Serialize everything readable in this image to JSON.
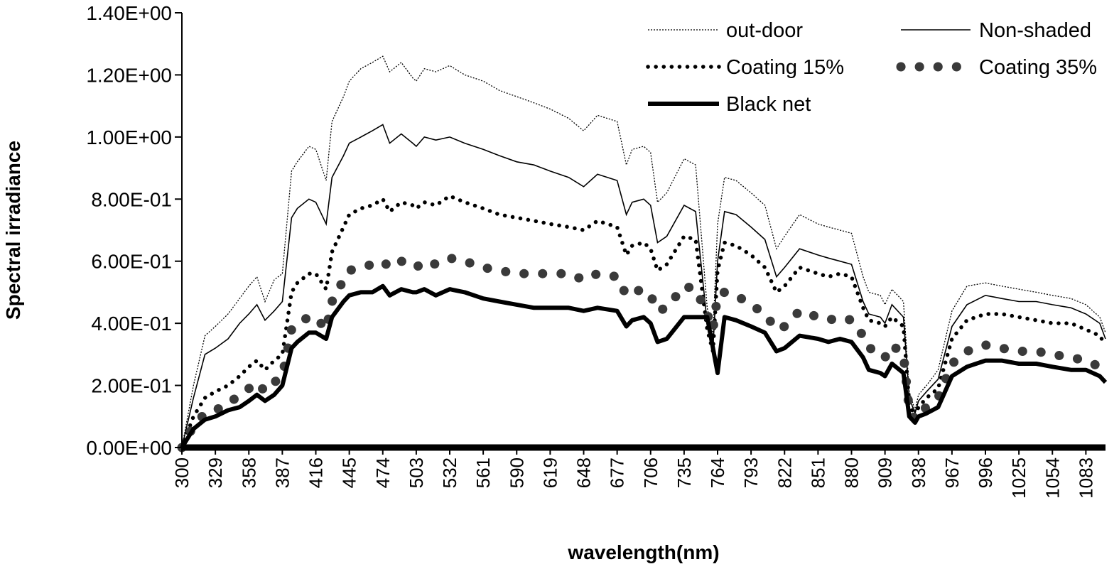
{
  "chart_data": {
    "type": "line",
    "xlabel": "wavelength(nm)",
    "ylabel": "Spectral irradiance",
    "ylim": [
      0,
      1.4
    ],
    "yticks": [
      "0.00E+00",
      "2.00E-01",
      "4.00E-01",
      "6.00E-01",
      "8.00E-01",
      "1.00E+00",
      "1.20E+00",
      "1.40E+00"
    ],
    "xticks": [
      "300",
      "329",
      "358",
      "387",
      "416",
      "445",
      "474",
      "503",
      "532",
      "561",
      "590",
      "619",
      "648",
      "677",
      "706",
      "735",
      "764",
      "793",
      "822",
      "851",
      "880",
      "909",
      "938",
      "967",
      "996",
      "1025",
      "1054",
      "1083"
    ],
    "xlim": [
      300,
      1100
    ],
    "grid": false,
    "legend_position": "top-right",
    "x": [
      300,
      310,
      320,
      329,
      340,
      350,
      358,
      365,
      372,
      380,
      387,
      395,
      400,
      410,
      416,
      425,
      430,
      440,
      445,
      455,
      465,
      474,
      480,
      490,
      500,
      503,
      510,
      520,
      532,
      545,
      561,
      575,
      590,
      605,
      619,
      635,
      648,
      660,
      677,
      685,
      690,
      700,
      706,
      712,
      720,
      735,
      745,
      755,
      760,
      764,
      770,
      780,
      793,
      805,
      815,
      822,
      835,
      851,
      860,
      870,
      880,
      890,
      895,
      905,
      909,
      915,
      925,
      930,
      935,
      938,
      945,
      955,
      967,
      980,
      996,
      1010,
      1025,
      1040,
      1054,
      1070,
      1083,
      1095,
      1100
    ],
    "series": [
      {
        "name": "out-door",
        "style": "thin-dotted",
        "values": [
          0.0,
          0.2,
          0.36,
          0.39,
          0.43,
          0.48,
          0.52,
          0.55,
          0.47,
          0.54,
          0.56,
          0.89,
          0.92,
          0.97,
          0.96,
          0.86,
          1.05,
          1.13,
          1.18,
          1.22,
          1.24,
          1.26,
          1.21,
          1.24,
          1.19,
          1.18,
          1.22,
          1.21,
          1.23,
          1.2,
          1.18,
          1.15,
          1.13,
          1.11,
          1.09,
          1.06,
          1.02,
          1.07,
          1.05,
          0.91,
          0.96,
          0.97,
          0.95,
          0.79,
          0.82,
          0.93,
          0.91,
          0.45,
          0.36,
          0.72,
          0.87,
          0.86,
          0.82,
          0.78,
          0.64,
          0.68,
          0.75,
          0.72,
          0.71,
          0.7,
          0.69,
          0.55,
          0.5,
          0.49,
          0.46,
          0.51,
          0.47,
          0.18,
          0.12,
          0.17,
          0.2,
          0.25,
          0.44,
          0.52,
          0.53,
          0.52,
          0.51,
          0.5,
          0.49,
          0.48,
          0.46,
          0.42,
          0.37
        ]
      },
      {
        "name": "Non-shaded",
        "style": "thin-solid",
        "values": [
          0.0,
          0.16,
          0.3,
          0.32,
          0.35,
          0.4,
          0.43,
          0.46,
          0.41,
          0.44,
          0.47,
          0.74,
          0.77,
          0.8,
          0.79,
          0.72,
          0.87,
          0.94,
          0.98,
          1.0,
          1.02,
          1.04,
          0.98,
          1.01,
          0.98,
          0.97,
          1.0,
          0.99,
          1.0,
          0.98,
          0.96,
          0.94,
          0.92,
          0.91,
          0.89,
          0.87,
          0.84,
          0.88,
          0.86,
          0.75,
          0.79,
          0.8,
          0.78,
          0.66,
          0.68,
          0.78,
          0.76,
          0.4,
          0.32,
          0.6,
          0.76,
          0.75,
          0.71,
          0.67,
          0.55,
          0.58,
          0.64,
          0.62,
          0.61,
          0.6,
          0.59,
          0.47,
          0.43,
          0.42,
          0.4,
          0.46,
          0.42,
          0.16,
          0.11,
          0.15,
          0.18,
          0.22,
          0.39,
          0.46,
          0.49,
          0.48,
          0.47,
          0.47,
          0.46,
          0.45,
          0.43,
          0.4,
          0.35
        ]
      },
      {
        "name": "Coating 15%",
        "style": "dotted",
        "values": [
          0.0,
          0.1,
          0.16,
          0.18,
          0.2,
          0.23,
          0.26,
          0.28,
          0.25,
          0.28,
          0.3,
          0.5,
          0.53,
          0.56,
          0.56,
          0.51,
          0.63,
          0.71,
          0.75,
          0.77,
          0.78,
          0.8,
          0.76,
          0.79,
          0.78,
          0.77,
          0.79,
          0.78,
          0.81,
          0.79,
          0.77,
          0.75,
          0.74,
          0.73,
          0.72,
          0.71,
          0.7,
          0.73,
          0.71,
          0.62,
          0.65,
          0.66,
          0.64,
          0.57,
          0.59,
          0.68,
          0.67,
          0.38,
          0.31,
          0.57,
          0.66,
          0.65,
          0.62,
          0.58,
          0.5,
          0.52,
          0.58,
          0.56,
          0.55,
          0.56,
          0.55,
          0.45,
          0.41,
          0.4,
          0.39,
          0.42,
          0.39,
          0.14,
          0.1,
          0.13,
          0.16,
          0.19,
          0.35,
          0.41,
          0.43,
          0.43,
          0.42,
          0.41,
          0.4,
          0.4,
          0.38,
          0.36,
          0.33
        ]
      },
      {
        "name": "Coating 35%",
        "style": "large-dotted",
        "values": [
          0.0,
          0.07,
          0.11,
          0.12,
          0.14,
          0.17,
          0.19,
          0.21,
          0.18,
          0.21,
          0.23,
          0.38,
          0.4,
          0.42,
          0.42,
          0.38,
          0.47,
          0.54,
          0.57,
          0.58,
          0.59,
          0.6,
          0.58,
          0.6,
          0.59,
          0.58,
          0.6,
          0.59,
          0.61,
          0.6,
          0.58,
          0.57,
          0.56,
          0.56,
          0.56,
          0.56,
          0.54,
          0.56,
          0.55,
          0.49,
          0.5,
          0.51,
          0.49,
          0.44,
          0.45,
          0.52,
          0.51,
          0.43,
          0.38,
          0.49,
          0.5,
          0.49,
          0.46,
          0.43,
          0.38,
          0.39,
          0.44,
          0.42,
          0.41,
          0.42,
          0.41,
          0.36,
          0.32,
          0.31,
          0.29,
          0.33,
          0.3,
          0.12,
          0.09,
          0.11,
          0.13,
          0.16,
          0.27,
          0.31,
          0.33,
          0.32,
          0.31,
          0.31,
          0.3,
          0.29,
          0.28,
          0.26,
          0.24
        ]
      },
      {
        "name": "Black net",
        "style": "thick-solid",
        "values": [
          0.0,
          0.06,
          0.09,
          0.1,
          0.12,
          0.13,
          0.15,
          0.17,
          0.15,
          0.17,
          0.2,
          0.32,
          0.34,
          0.37,
          0.37,
          0.35,
          0.42,
          0.47,
          0.49,
          0.5,
          0.5,
          0.52,
          0.49,
          0.51,
          0.5,
          0.5,
          0.51,
          0.49,
          0.51,
          0.5,
          0.48,
          0.47,
          0.46,
          0.45,
          0.45,
          0.45,
          0.44,
          0.45,
          0.44,
          0.39,
          0.41,
          0.42,
          0.4,
          0.34,
          0.35,
          0.42,
          0.42,
          0.42,
          0.32,
          0.24,
          0.42,
          0.41,
          0.39,
          0.37,
          0.31,
          0.32,
          0.36,
          0.35,
          0.34,
          0.35,
          0.34,
          0.29,
          0.25,
          0.24,
          0.23,
          0.27,
          0.24,
          0.1,
          0.08,
          0.1,
          0.11,
          0.13,
          0.23,
          0.26,
          0.28,
          0.28,
          0.27,
          0.27,
          0.26,
          0.25,
          0.25,
          0.23,
          0.21
        ]
      }
    ],
    "baseline_value": 0,
    "colors": {
      "line": "#000000",
      "large_dot": "#3a3a3a"
    }
  }
}
